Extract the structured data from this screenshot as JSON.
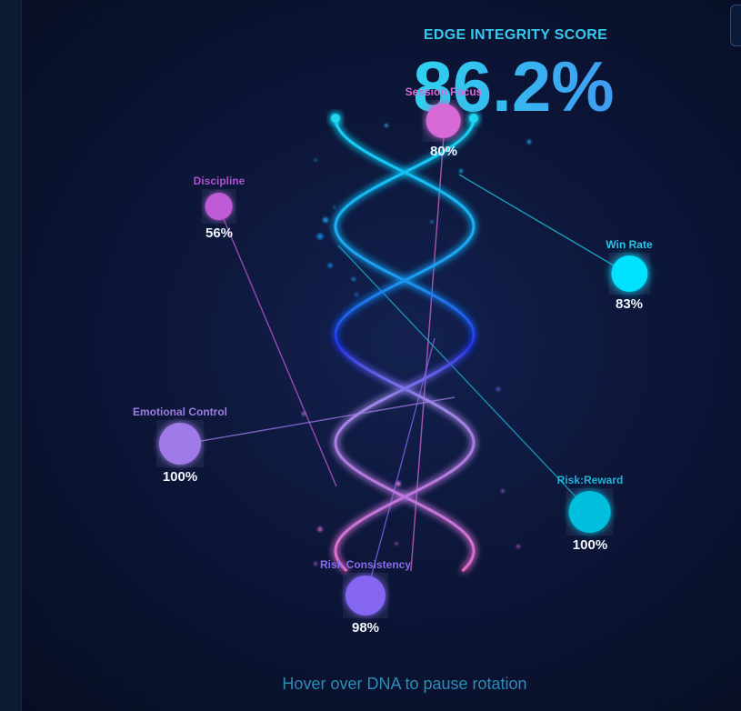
{
  "score": {
    "label": "EDGE INTEGRITY SCORE",
    "value": "86.2%"
  },
  "metrics": [
    {
      "label": "Session Focus",
      "value": "80%",
      "color": "#d86ad6",
      "label_color": "#d86ad6"
    },
    {
      "label": "Discipline",
      "value": "56%",
      "color": "#c05bd8",
      "label_color": "#b24fcf"
    },
    {
      "label": "Win Rate",
      "value": "83%",
      "color": "#00e1ff",
      "label_color": "#28c5e6"
    },
    {
      "label": "Emotional Control",
      "value": "100%",
      "color": "#a07ae6",
      "label_color": "#9a7ee0"
    },
    {
      "label": "Risk:Reward",
      "value": "100%",
      "color": "#00bfdc",
      "label_color": "#1eb3d6"
    },
    {
      "label": "Risk Consistency",
      "value": "98%",
      "color": "#8566f2",
      "label_color": "#8a6cee"
    }
  ],
  "hint": "Hover over DNA to pause rotation"
}
